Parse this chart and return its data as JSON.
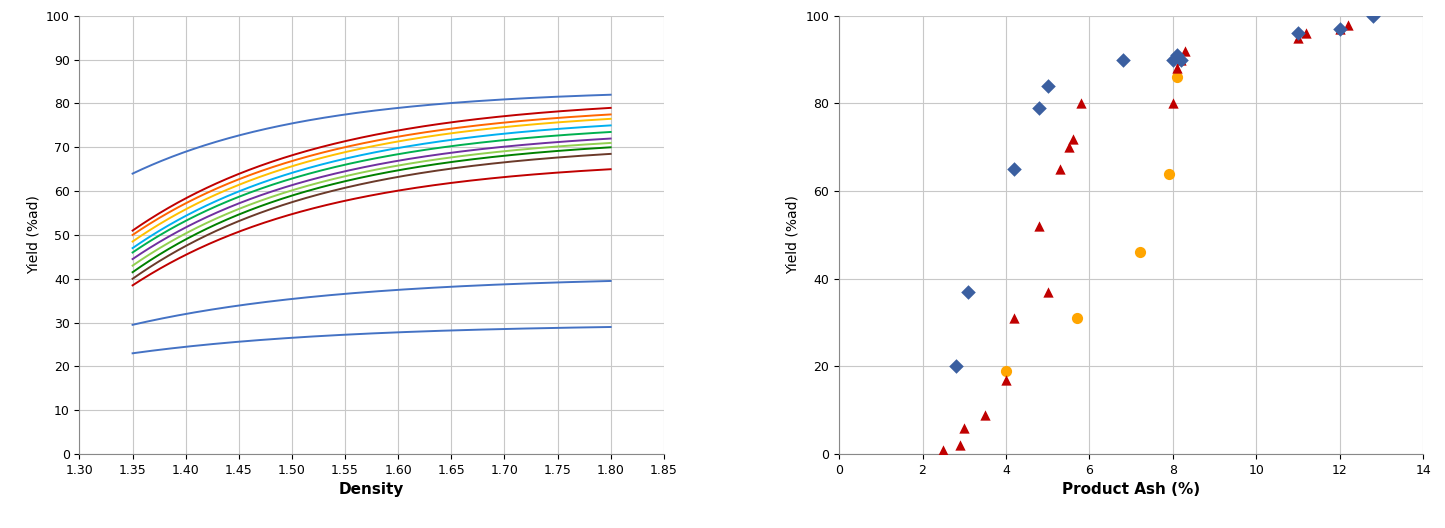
{
  "left_chart": {
    "xlabel": "Density",
    "ylabel": "Yield (%ad)",
    "xlim": [
      1.3,
      1.85
    ],
    "ylim": [
      0,
      100
    ],
    "xticks": [
      1.3,
      1.35,
      1.4,
      1.45,
      1.5,
      1.55,
      1.6,
      1.65,
      1.7,
      1.75,
      1.8,
      1.85
    ],
    "yticks": [
      0,
      10,
      20,
      30,
      40,
      50,
      60,
      70,
      80,
      90,
      100
    ],
    "curves": [
      {
        "color": "#4472C4",
        "y0": 64.0,
        "y1": 82.0,
        "k": 6.0
      },
      {
        "color": "#C00000",
        "y0": 51.0,
        "y1": 79.0,
        "k": 5.5
      },
      {
        "color": "#FF6600",
        "y0": 50.0,
        "y1": 77.5,
        "k": 5.5
      },
      {
        "color": "#FFC000",
        "y0": 48.5,
        "y1": 76.5,
        "k": 5.5
      },
      {
        "color": "#00B0F0",
        "y0": 47.0,
        "y1": 75.0,
        "k": 5.5
      },
      {
        "color": "#00B050",
        "y0": 46.0,
        "y1": 73.5,
        "k": 5.5
      },
      {
        "color": "#7030A0",
        "y0": 44.5,
        "y1": 72.0,
        "k": 5.5
      },
      {
        "color": "#92D050",
        "y0": 43.0,
        "y1": 71.0,
        "k": 5.5
      },
      {
        "color": "#008000",
        "y0": 41.5,
        "y1": 70.0,
        "k": 5.5
      },
      {
        "color": "#6B3A2A",
        "y0": 40.0,
        "y1": 68.5,
        "k": 5.5
      },
      {
        "color": "#C00000",
        "y0": 38.5,
        "y1": 65.0,
        "k": 5.5
      },
      {
        "color": "#4472C4",
        "y0": 29.5,
        "y1": 39.5,
        "k": 5.0
      },
      {
        "color": "#4472C4",
        "y0": 23.0,
        "y1": 29.0,
        "k": 5.0
      }
    ]
  },
  "right_chart": {
    "xlabel": "Product Ash (%)",
    "ylabel": "Yield (%ad)",
    "xlim": [
      0,
      14
    ],
    "ylim": [
      0,
      100
    ],
    "xticks": [
      0,
      2,
      4,
      6,
      8,
      10,
      12,
      14
    ],
    "yticks": [
      0,
      20,
      40,
      60,
      80,
      100
    ],
    "diamonds": {
      "color": "#3B5FA0",
      "x": [
        2.8,
        3.1,
        4.2,
        4.8,
        5.0,
        6.8,
        8.0,
        8.1,
        8.2,
        11.0,
        12.0,
        12.8
      ],
      "y": [
        20,
        37,
        65,
        79,
        84,
        90,
        90,
        91,
        90,
        96,
        97,
        100
      ]
    },
    "triangles": {
      "color": "#C00000",
      "x": [
        2.5,
        2.9,
        3.0,
        3.5,
        4.0,
        4.2,
        4.8,
        5.0,
        5.3,
        5.5,
        5.6,
        5.8,
        8.0,
        8.1,
        8.2,
        8.3,
        11.0,
        11.2,
        12.0,
        12.2
      ],
      "y": [
        1,
        2,
        6,
        9,
        17,
        31,
        52,
        37,
        65,
        70,
        72,
        80,
        80,
        88,
        90,
        92,
        95,
        96,
        97,
        98
      ]
    },
    "circles": {
      "color": "#FFA500",
      "x": [
        4.0,
        5.7,
        7.2,
        7.9,
        8.1
      ],
      "y": [
        19,
        31,
        46,
        64,
        86
      ]
    }
  },
  "bg_color": "#FFFFFF",
  "grid_color": "#C8C8C8"
}
